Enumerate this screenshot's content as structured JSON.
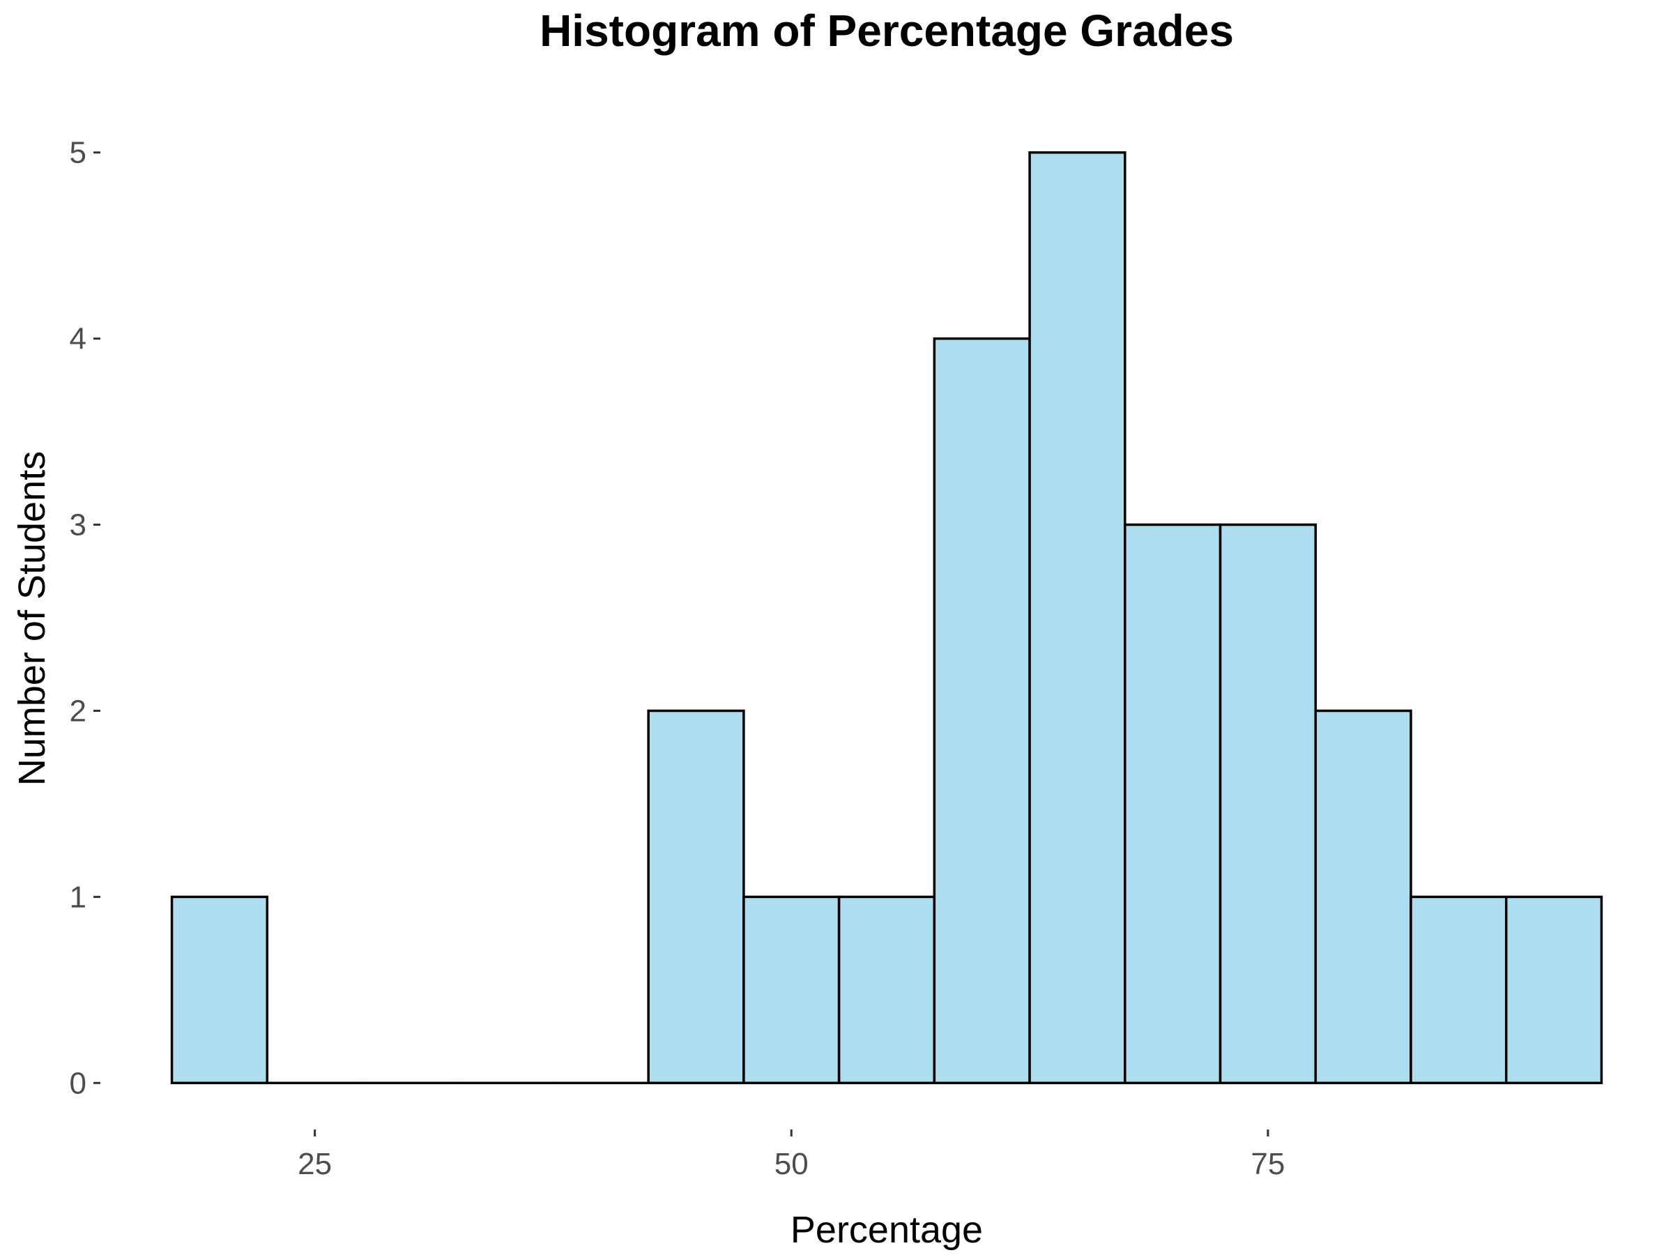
{
  "chart_data": {
    "type": "bar",
    "title": "Histogram of Percentage Grades",
    "xlabel": "Percentage",
    "ylabel": "Number of Students",
    "bin_width": 5,
    "bins": [
      {
        "start": 17.5,
        "end": 22.5,
        "count": 1
      },
      {
        "start": 22.5,
        "end": 27.5,
        "count": 0
      },
      {
        "start": 27.5,
        "end": 32.5,
        "count": 0
      },
      {
        "start": 32.5,
        "end": 37.5,
        "count": 0
      },
      {
        "start": 37.5,
        "end": 42.5,
        "count": 0
      },
      {
        "start": 42.5,
        "end": 47.5,
        "count": 2
      },
      {
        "start": 47.5,
        "end": 52.5,
        "count": 1
      },
      {
        "start": 52.5,
        "end": 57.5,
        "count": 1
      },
      {
        "start": 57.5,
        "end": 62.5,
        "count": 4
      },
      {
        "start": 62.5,
        "end": 67.5,
        "count": 5
      },
      {
        "start": 67.5,
        "end": 72.5,
        "count": 3
      },
      {
        "start": 72.5,
        "end": 77.5,
        "count": 3
      },
      {
        "start": 77.5,
        "end": 82.5,
        "count": 2
      },
      {
        "start": 82.5,
        "end": 87.5,
        "count": 1
      },
      {
        "start": 87.5,
        "end": 92.5,
        "count": 1
      }
    ],
    "xticks": [
      25,
      50,
      75
    ],
    "yticks": [
      0,
      1,
      2,
      3,
      4,
      5
    ],
    "xlim": [
      13.75,
      96.25
    ],
    "ylim": [
      -0.25,
      5.25
    ],
    "fill_color": "#ADDEEF",
    "outline_color": "#000000",
    "tick_label_color": "#4d4d4d",
    "grid": false,
    "legend": "none"
  }
}
